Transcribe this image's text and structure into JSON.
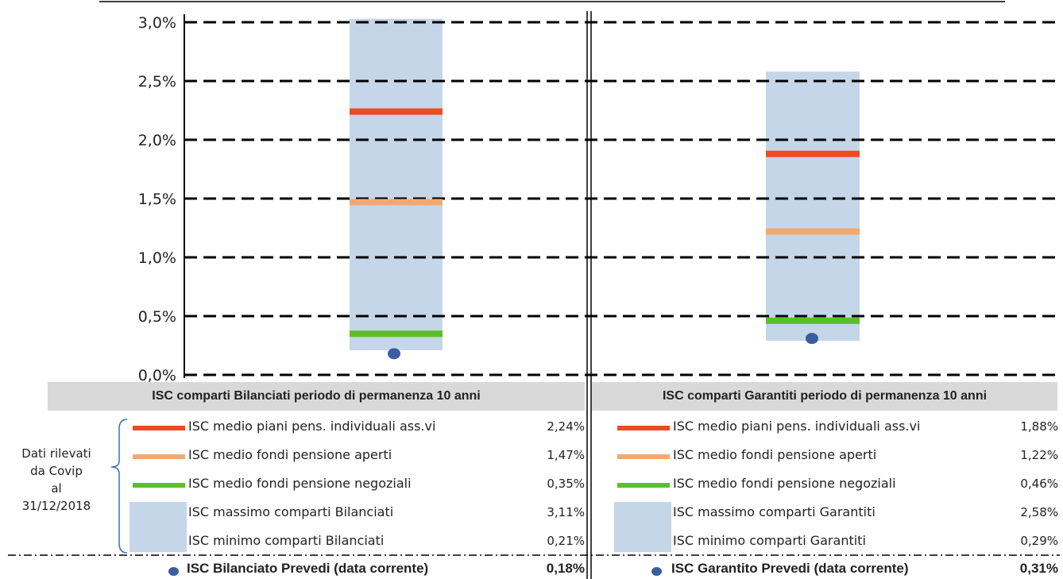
{
  "chart_data": [
    {
      "type": "range-bar",
      "title": "ISC comparti Bilanciati periodo di permanenza 10 anni",
      "y_ticks": [
        "0,0%",
        "0,5%",
        "1,0%",
        "1,5%",
        "2,0%",
        "2,5%",
        "3,0%"
      ],
      "ylim": [
        0,
        3.0
      ],
      "grid": true,
      "range": {
        "min": 0.21,
        "max": 3.11
      },
      "lines": [
        {
          "name": "ISC medio piani pens. individuali ass.vi",
          "value": 2.24,
          "label": "2,24%",
          "color": "#f04a23"
        },
        {
          "name": "ISC medio fondi pensione aperti",
          "value": 1.47,
          "label": "1,47%",
          "color": "#f4a870"
        },
        {
          "name": "ISC medio fondi pensione negoziali",
          "value": 0.35,
          "label": "0,35%",
          "color": "#5cbf2a"
        }
      ],
      "box_labels": [
        {
          "name": "ISC massimo comparti Bilanciati",
          "label": "3,11%"
        },
        {
          "name": "ISC minimo comparti Bilanciati",
          "label": "0,21%"
        }
      ],
      "point": {
        "name": "ISC Bilanciato Prevedi (data corrente)",
        "value": 0.18,
        "label": "0,18%",
        "color": "#3b5da0"
      }
    },
    {
      "type": "range-bar",
      "title": "ISC comparti Garantiti periodo di permanenza 10 anni",
      "ylim": [
        0,
        3.0
      ],
      "grid": true,
      "range": {
        "min": 0.29,
        "max": 2.58
      },
      "lines": [
        {
          "name": "ISC medio piani pens. individuali ass.vi",
          "value": 1.88,
          "label": "1,88%",
          "color": "#f04a23"
        },
        {
          "name": "ISC medio fondi pensione aperti",
          "value": 1.22,
          "label": "1,22%",
          "color": "#f4a870"
        },
        {
          "name": "ISC medio fondi pensione negoziali",
          "value": 0.46,
          "label": "0,46%",
          "color": "#5cbf2a"
        }
      ],
      "box_labels": [
        {
          "name": "ISC massimo comparti Garantiti",
          "label": "2,58%"
        },
        {
          "name": "ISC minimo comparti Garantiti",
          "label": "0,29%"
        }
      ],
      "point": {
        "name": "ISC Garantito Prevedi (data corrente)",
        "value": 0.31,
        "label": "0,31%",
        "color": "#3b5da0"
      }
    }
  ],
  "note_lines": [
    "Dati rilevati",
    "da Covip",
    "al",
    "31/12/2018"
  ],
  "colors": {
    "range_fill": "#c5d6e8",
    "title_band": "#d9d9d9"
  }
}
